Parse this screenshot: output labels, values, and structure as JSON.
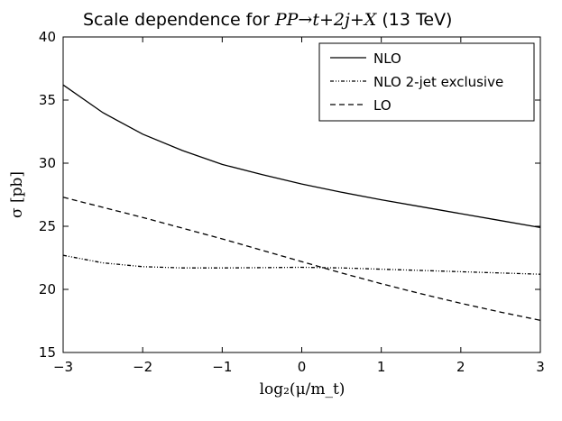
{
  "chart_data": {
    "type": "line",
    "title_prefix": "Scale dependence for ",
    "title_math": "PP→t+2j+X",
    "title_suffix": " (13 TeV)",
    "xlabel": "log₂(μ/m_t)",
    "ylabel": "σ [pb]",
    "xlim": [
      -3,
      3
    ],
    "ylim": [
      15,
      40
    ],
    "xticks": [
      -3,
      -2,
      -1,
      0,
      1,
      2,
      3
    ],
    "xtick_labels": [
      "−3",
      "−2",
      "−1",
      "0",
      "1",
      "2",
      "3"
    ],
    "yticks": [
      15,
      20,
      25,
      30,
      35,
      40
    ],
    "ytick_labels": [
      "15",
      "20",
      "25",
      "30",
      "35",
      "40"
    ],
    "legend_position": "top-right",
    "series": [
      {
        "name": "NLO",
        "style": "solid",
        "x": [
          -3,
          -2.5,
          -2,
          -1.5,
          -1,
          -0.5,
          0,
          0.5,
          1,
          1.5,
          2,
          2.5,
          3
        ],
        "y": [
          36.2,
          34.0,
          32.3,
          31.0,
          29.9,
          29.1,
          28.35,
          27.7,
          27.1,
          26.55,
          26.0,
          25.45,
          24.9
        ]
      },
      {
        "name": "NLO 2-jet exclusive",
        "style": "dashdot",
        "x": [
          -3,
          -2.5,
          -2,
          -1.5,
          -1,
          -0.5,
          0,
          0.5,
          1,
          1.5,
          2,
          2.5,
          3
        ],
        "y": [
          22.7,
          22.1,
          21.8,
          21.7,
          21.7,
          21.72,
          21.75,
          21.7,
          21.6,
          21.5,
          21.4,
          21.3,
          21.2
        ]
      },
      {
        "name": "LO",
        "style": "dashed",
        "x": [
          -3,
          -2.5,
          -2,
          -1.5,
          -1,
          -0.5,
          0,
          0.5,
          1,
          1.5,
          2,
          2.5,
          3
        ],
        "y": [
          27.3,
          26.5,
          25.7,
          24.85,
          24.0,
          23.1,
          22.2,
          21.3,
          20.45,
          19.65,
          18.9,
          18.2,
          17.55
        ]
      }
    ]
  }
}
